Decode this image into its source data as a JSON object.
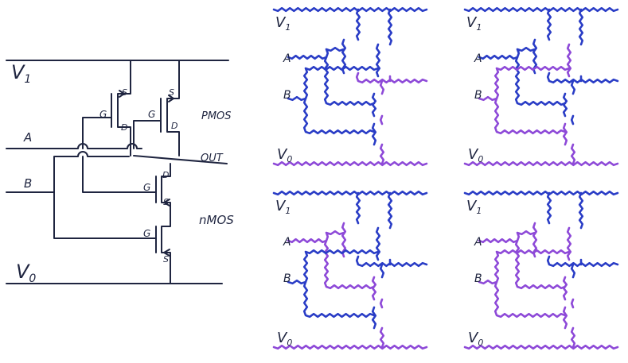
{
  "colors": {
    "ink": "#1f2540",
    "high": "#2a3dc6",
    "low": "#8e4ad8"
  },
  "schematic": {
    "v1": "V",
    "v1_sub": "1",
    "v0": "V",
    "v0_sub": "0",
    "in_a": "A",
    "in_b": "B",
    "out": "OUT",
    "pmos": "PMOS",
    "nmos": "nMOS",
    "g": "G",
    "s": "S",
    "d": "D"
  },
  "panel": {
    "v1": "V",
    "v1_sub": "1",
    "v0": "V",
    "v0_sub": "0",
    "in_a": "A",
    "in_b": "B"
  }
}
